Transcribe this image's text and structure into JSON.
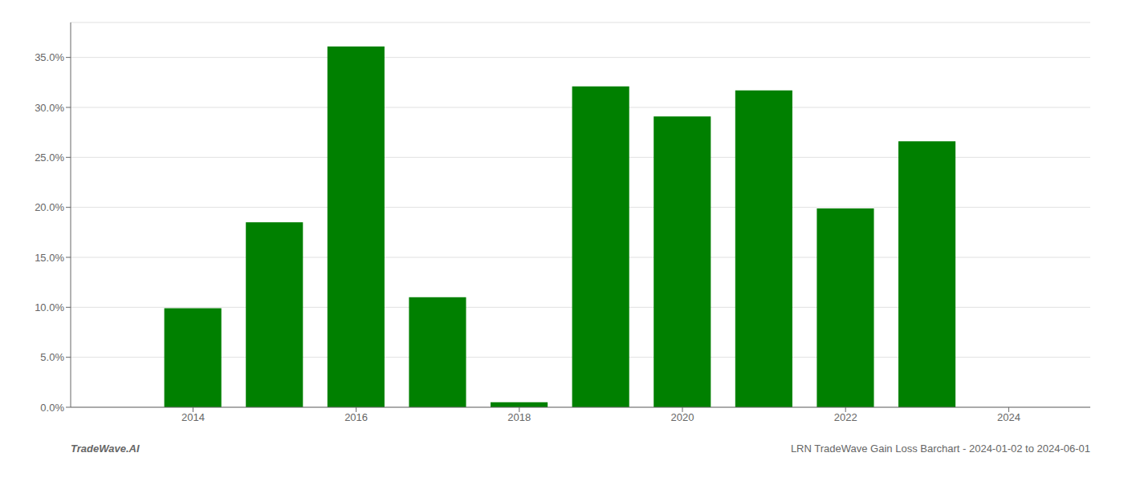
{
  "chart_data": {
    "type": "bar",
    "x": [
      2014,
      2015,
      2016,
      2017,
      2018,
      2019,
      2020,
      2021,
      2022,
      2023
    ],
    "values": [
      0.099,
      0.185,
      0.361,
      0.11,
      0.005,
      0.321,
      0.291,
      0.317,
      0.199,
      0.266
    ],
    "color": "#008000",
    "xlim": [
      2012.5,
      2025.0
    ],
    "xticks": [
      2014,
      2016,
      2018,
      2020,
      2022,
      2024
    ],
    "ylim": [
      0,
      0.385
    ],
    "yticks": [
      {
        "value": 0.0,
        "label": "0.0%"
      },
      {
        "value": 0.05,
        "label": "5.0%"
      },
      {
        "value": 0.1,
        "label": "10.0%"
      },
      {
        "value": 0.15,
        "label": "15.0%"
      },
      {
        "value": 0.2,
        "label": "20.0%"
      },
      {
        "value": 0.25,
        "label": "25.0%"
      },
      {
        "value": 0.3,
        "label": "30.0%"
      },
      {
        "value": 0.35,
        "label": "35.0%"
      }
    ],
    "grid": true,
    "annotations": [
      "TradeWave.AI",
      "LRN TradeWave Gain Loss Barchart - 2024-01-02 to 2024-06-01"
    ]
  }
}
